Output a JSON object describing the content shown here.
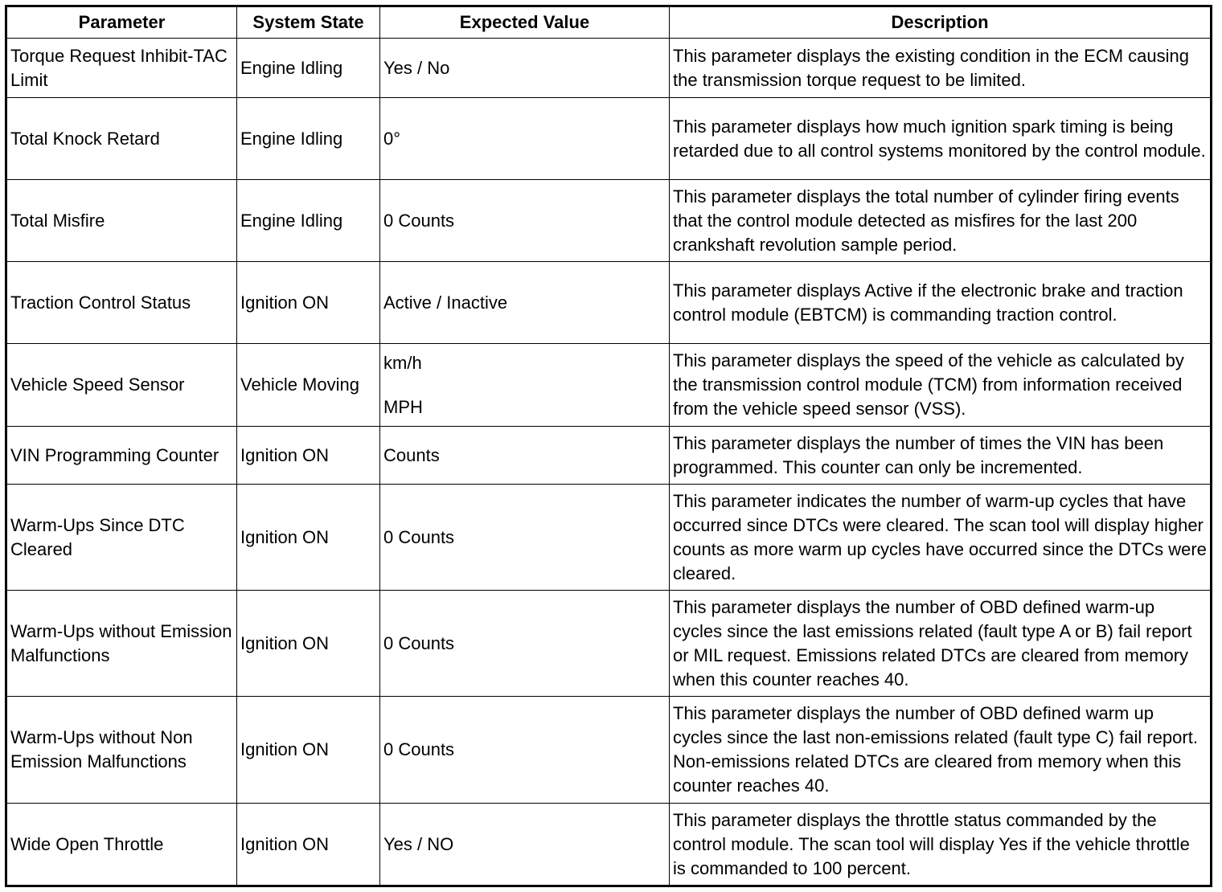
{
  "headers": [
    "Parameter",
    "System State",
    "Expected Value",
    "Description"
  ],
  "rows": [
    {
      "parameter": "Torque Request Inhibit-TAC Limit",
      "state": "Engine Idling",
      "expected": [
        "Yes / No"
      ],
      "description": "This parameter displays the existing condition in the ECM causing the transmission torque request to be limited."
    },
    {
      "parameter": "Total Knock Retard",
      "state": "Engine Idling",
      "expected": [
        "0°"
      ],
      "description": "This parameter displays how much ignition spark timing is being retarded due to all control systems monitored by the control module."
    },
    {
      "parameter": "Total Misfire",
      "state": "Engine Idling",
      "expected": [
        "0 Counts"
      ],
      "description": "This parameter displays the total number of cylinder firing events that the control module detected as misfires for the last 200 crankshaft revolution sample period."
    },
    {
      "parameter": "Traction Control Status",
      "state": "Ignition ON",
      "expected": [
        "Active / Inactive"
      ],
      "description": "This parameter displays Active if the electronic brake and traction control module (EBTCM) is commanding traction control."
    },
    {
      "parameter": "Vehicle Speed Sensor",
      "state": "Vehicle Moving",
      "expected": [
        "km/h",
        "MPH"
      ],
      "description": "This parameter displays the speed of the vehicle as calculated by the transmission control module (TCM) from information received from the vehicle speed sensor (VSS)."
    },
    {
      "parameter": "VIN Programming Counter",
      "state": "Ignition ON",
      "expected": [
        "Counts"
      ],
      "description": "This parameter displays the number of times the VIN has been programmed. This counter can only be incremented."
    },
    {
      "parameter": "Warm-Ups Since DTC Cleared",
      "state": "Ignition ON",
      "expected": [
        "0 Counts"
      ],
      "description": "This parameter indicates the number of warm-up cycles that have occurred since DTCs were cleared. The scan tool will display higher counts as more warm up cycles have occurred since the DTCs were cleared."
    },
    {
      "parameter": "Warm-Ups without Emission Malfunctions",
      "state": "Ignition ON",
      "expected": [
        "0 Counts"
      ],
      "description": "This parameter displays the number of OBD defined warm-up cycles since the last emissions related (fault type A or B) fail report or MIL request. Emissions related DTCs are cleared from memory when this counter reaches 40."
    },
    {
      "parameter": "Warm-Ups without Non Emission Malfunctions",
      "state": "Ignition ON",
      "expected": [
        "0 Counts"
      ],
      "description": "This parameter displays the number of OBD defined warm up cycles since the last non-emissions related (fault type C) fail report. Non-emissions related DTCs are cleared from memory when this counter reaches 40."
    },
    {
      "parameter": "Wide Open Throttle",
      "state": "Ignition ON",
      "expected": [
        "Yes / NO"
      ],
      "description": "This parameter displays the throttle status commanded by the control module. The scan tool will display Yes if the vehicle throttle is commanded to 100 percent."
    }
  ]
}
